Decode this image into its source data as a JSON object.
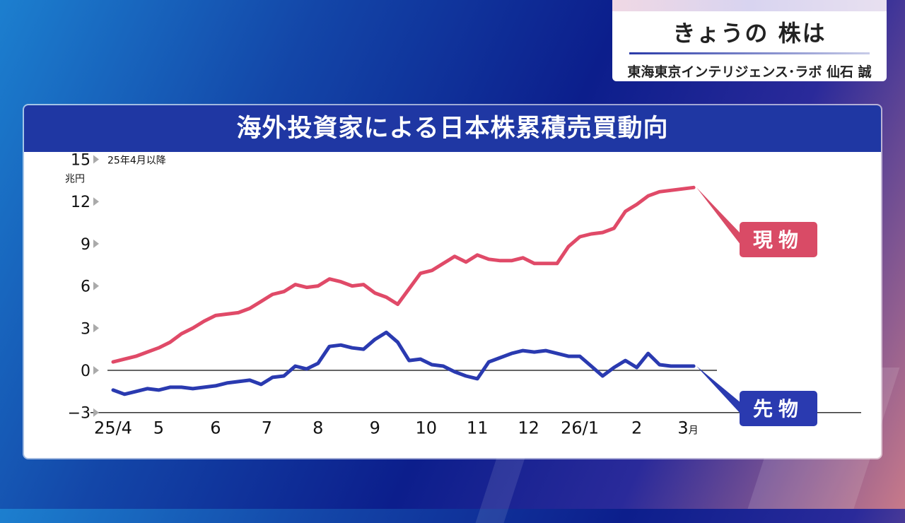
{
  "header": {
    "title": "きょうの 株は",
    "subtitle": "東海東京インテリジェンス･ラボ 仙石 誠"
  },
  "chart_data": {
    "type": "line",
    "title": "海外投資家による日本株累積売買動向",
    "subtitle": "25年4月以降",
    "yunit": "兆円",
    "ylim": [
      -3,
      15
    ],
    "yticks": [
      -3,
      0,
      3,
      6,
      9,
      12,
      15
    ],
    "ytick_labels": [
      "−3",
      "0",
      "3",
      "6",
      "9",
      "12",
      "15"
    ],
    "xlim": [
      0,
      67
    ],
    "xticks": [
      {
        "label": "25/4",
        "x": 0
      },
      {
        "label": "5",
        "x": 4
      },
      {
        "label": "6",
        "x": 9
      },
      {
        "label": "7",
        "x": 13.5
      },
      {
        "label": "8",
        "x": 18
      },
      {
        "label": "9",
        "x": 23
      },
      {
        "label": "10",
        "x": 27.5
      },
      {
        "label": "11",
        "x": 32
      },
      {
        "label": "12",
        "x": 36.5
      },
      {
        "label": "26/1",
        "x": 41
      },
      {
        "label": "2",
        "x": 46
      },
      {
        "label": "3",
        "x": 50.5,
        "suffix": "月"
      }
    ],
    "grid": false,
    "series": [
      {
        "name": "現物",
        "color": "#e04a68",
        "label_color": "#d94b66",
        "x": [
          0,
          1,
          2,
          3,
          4,
          5,
          6,
          7,
          8,
          9,
          10,
          11,
          12,
          13,
          14,
          15,
          16,
          17,
          18,
          19,
          20,
          21,
          22,
          23,
          24,
          25,
          26,
          27,
          28,
          29,
          30,
          31,
          32,
          33,
          34,
          35,
          36,
          37,
          38,
          39,
          40,
          41,
          42,
          43,
          44,
          45,
          46,
          47,
          48,
          49,
          50,
          51
        ],
        "values": [
          0.6,
          0.8,
          1.0,
          1.3,
          1.6,
          2.0,
          2.6,
          3.0,
          3.5,
          3.9,
          4.0,
          4.1,
          4.4,
          4.9,
          5.4,
          5.6,
          6.1,
          5.9,
          6.0,
          6.5,
          6.3,
          6.0,
          6.1,
          5.5,
          5.2,
          4.7,
          5.8,
          6.9,
          7.1,
          7.6,
          8.1,
          7.7,
          8.2,
          7.9,
          7.8,
          7.8,
          8.0,
          7.6,
          7.6,
          7.6,
          8.8,
          9.5,
          9.7,
          9.8,
          10.1,
          11.3,
          11.8,
          12.4,
          12.7,
          12.8,
          12.9,
          13.0
        ]
      },
      {
        "name": "先物",
        "color": "#2a3ab0",
        "label_color": "#2a3ab0",
        "x": [
          0,
          1,
          2,
          3,
          4,
          5,
          6,
          7,
          8,
          9,
          10,
          11,
          12,
          13,
          14,
          15,
          16,
          17,
          18,
          19,
          20,
          21,
          22,
          23,
          24,
          25,
          26,
          27,
          28,
          29,
          30,
          31,
          32,
          33,
          34,
          35,
          36,
          37,
          38,
          39,
          40,
          41,
          42,
          43,
          44,
          45,
          46,
          47,
          48,
          49,
          50,
          51
        ],
        "values": [
          -1.4,
          -1.7,
          -1.5,
          -1.3,
          -1.4,
          -1.2,
          -1.2,
          -1.3,
          -1.2,
          -1.1,
          -0.9,
          -0.8,
          -0.7,
          -1.0,
          -0.5,
          -0.4,
          0.3,
          0.1,
          0.5,
          1.7,
          1.8,
          1.6,
          1.5,
          2.2,
          2.7,
          2.0,
          0.7,
          0.8,
          0.4,
          0.3,
          -0.1,
          -0.4,
          -0.6,
          0.6,
          0.9,
          1.2,
          1.4,
          1.3,
          1.4,
          1.2,
          1.0,
          1.0,
          0.3,
          -0.4,
          0.2,
          0.7,
          0.2,
          1.2,
          0.4,
          0.3,
          0.3,
          0.3
        ]
      }
    ]
  }
}
